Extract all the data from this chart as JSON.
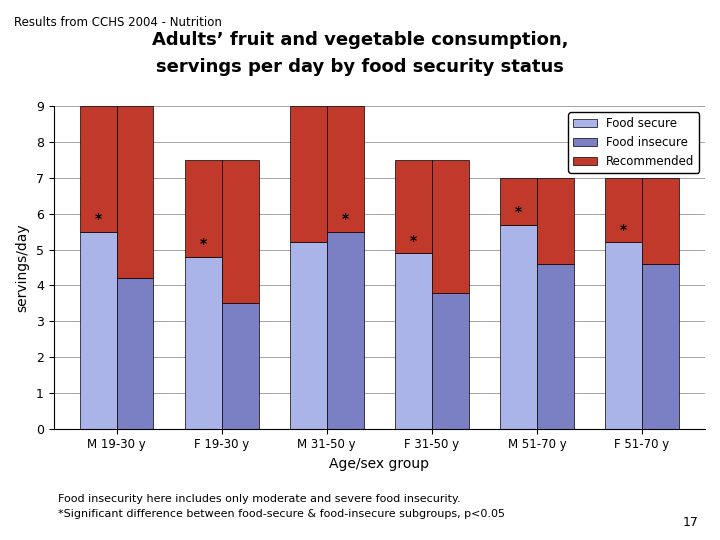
{
  "title_line1": "Adults’ fruit and vegetable consumption,",
  "title_line2": "servings per day by food security status",
  "header": "Results from CCHS 2004 - Nutrition",
  "xlabel": "Age/sex group",
  "ylabel": "servings/day",
  "categories": [
    "M 19-30 y",
    "F 19-30 y",
    "M 31-50 y",
    "F 31-50 y",
    "M 51-70 y",
    "F 51-70 y"
  ],
  "food_secure": [
    5.5,
    4.8,
    5.2,
    4.9,
    5.7,
    5.2
  ],
  "food_insecure": [
    4.2,
    3.5,
    5.5,
    3.8,
    4.6,
    4.6
  ],
  "recommended": [
    9.0,
    7.5,
    9.0,
    7.5,
    7.0,
    7.0
  ],
  "star_on_secure": [
    true,
    true,
    false,
    true,
    true,
    true
  ],
  "star_on_insecure": [
    false,
    false,
    true,
    false,
    false,
    false
  ],
  "color_secure": "#aab4e8",
  "color_insecure": "#7b7fc4",
  "color_recommended": "#c0392b",
  "ylim": [
    0,
    9
  ],
  "yticks": [
    0,
    1,
    2,
    3,
    4,
    5,
    6,
    7,
    8,
    9
  ],
  "footnote1": "Food insecurity here includes only moderate and severe food insecurity.",
  "footnote2": "*Significant difference between food-secure & food-insecure subgroups, p<0.05",
  "page_number": "17"
}
